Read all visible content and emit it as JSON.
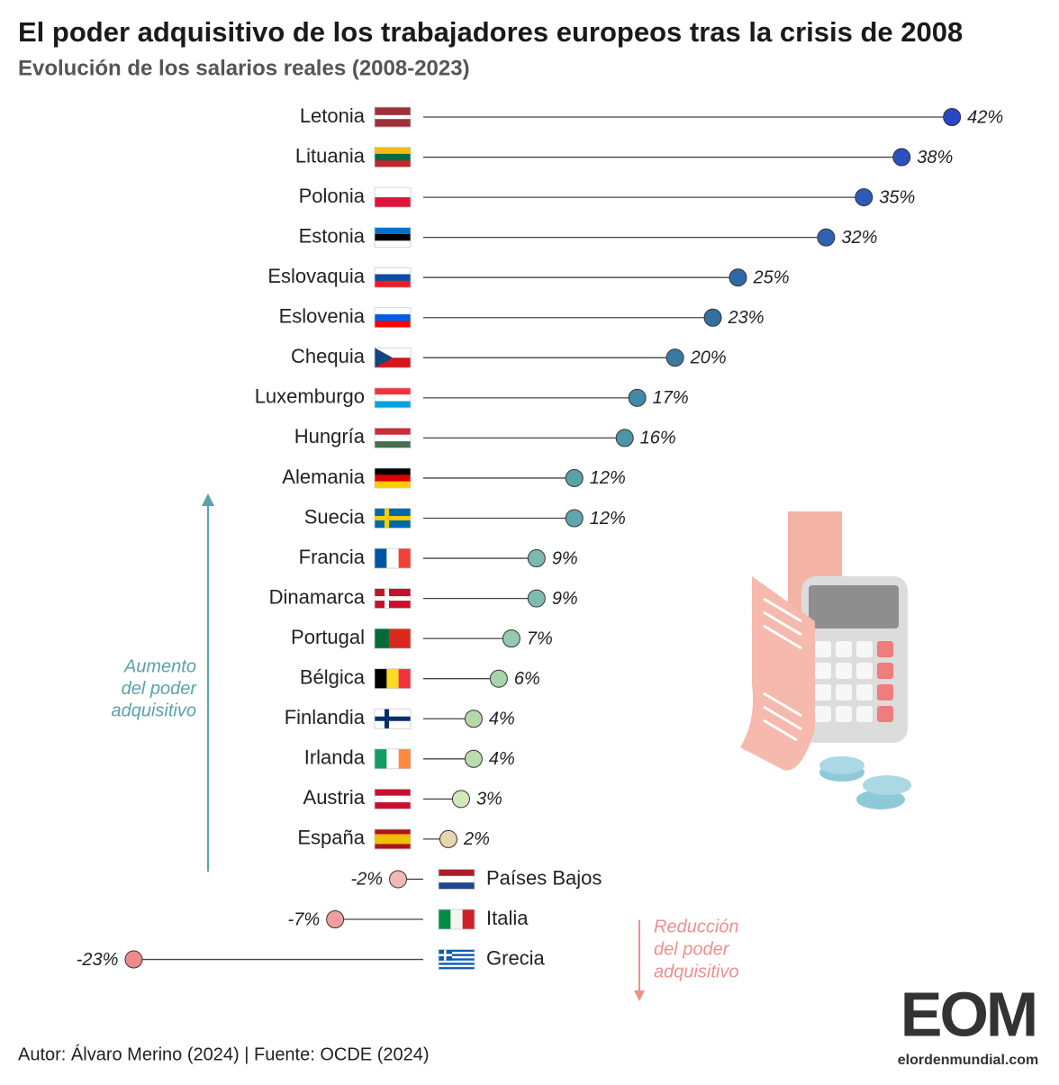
{
  "chart_data": {
    "type": "lollipop",
    "title": "El poder adquisitivo de los trabajadores europeos tras la crisis de 2008",
    "subtitle": "Evolución de los salarios reales (2008-2023)",
    "categories": [
      "Letonia",
      "Lituania",
      "Polonia",
      "Estonia",
      "Eslovaquia",
      "Eslovenia",
      "Chequia",
      "Luxemburgo",
      "Hungría",
      "Alemania",
      "Suecia",
      "Francia",
      "Dinamarca",
      "Portugal",
      "Bélgica",
      "Finlandia",
      "Irlanda",
      "Austria",
      "España",
      "Países Bajos",
      "Italia",
      "Grecia"
    ],
    "values": [
      42,
      38,
      35,
      32,
      25,
      23,
      20,
      17,
      16,
      12,
      12,
      9,
      9,
      7,
      6,
      4,
      4,
      3,
      2,
      -2,
      -7,
      -23
    ],
    "value_labels": [
      "42%",
      "38%",
      "35%",
      "32%",
      "25%",
      "23%",
      "20%",
      "17%",
      "16%",
      "12%",
      "12%",
      "9%",
      "9%",
      "7%",
      "6%",
      "4%",
      "4%",
      "3%",
      "2%",
      "-2%",
      "-7%",
      "-23%"
    ],
    "colors": [
      "#2748c4",
      "#2b50c0",
      "#2d5ab8",
      "#2f62b2",
      "#2e68a6",
      "#33709e",
      "#3a7a9e",
      "#4388a6",
      "#4d94a8",
      "#5aa2aa",
      "#5fa6ae",
      "#7db9b0",
      "#80bbb2",
      "#96c9ad",
      "#a8d3ad",
      "#b6d9ac",
      "#b9dbad",
      "#d4e9b8",
      "#e6d6b0",
      "#f2b8b2",
      "#ef9f9f",
      "#ee8a8c"
    ],
    "annotations": {
      "increase": [
        "Aumento",
        "del poder",
        "adquisitivo"
      ],
      "decrease": [
        "Reducción",
        "del poder",
        "adquisitivo"
      ]
    },
    "footer": "Autor: Álvaro Merino (2024) | Fuente: OCDE (2024)",
    "logo": {
      "mark": "EOM",
      "site": "elordenmundial.com"
    }
  }
}
